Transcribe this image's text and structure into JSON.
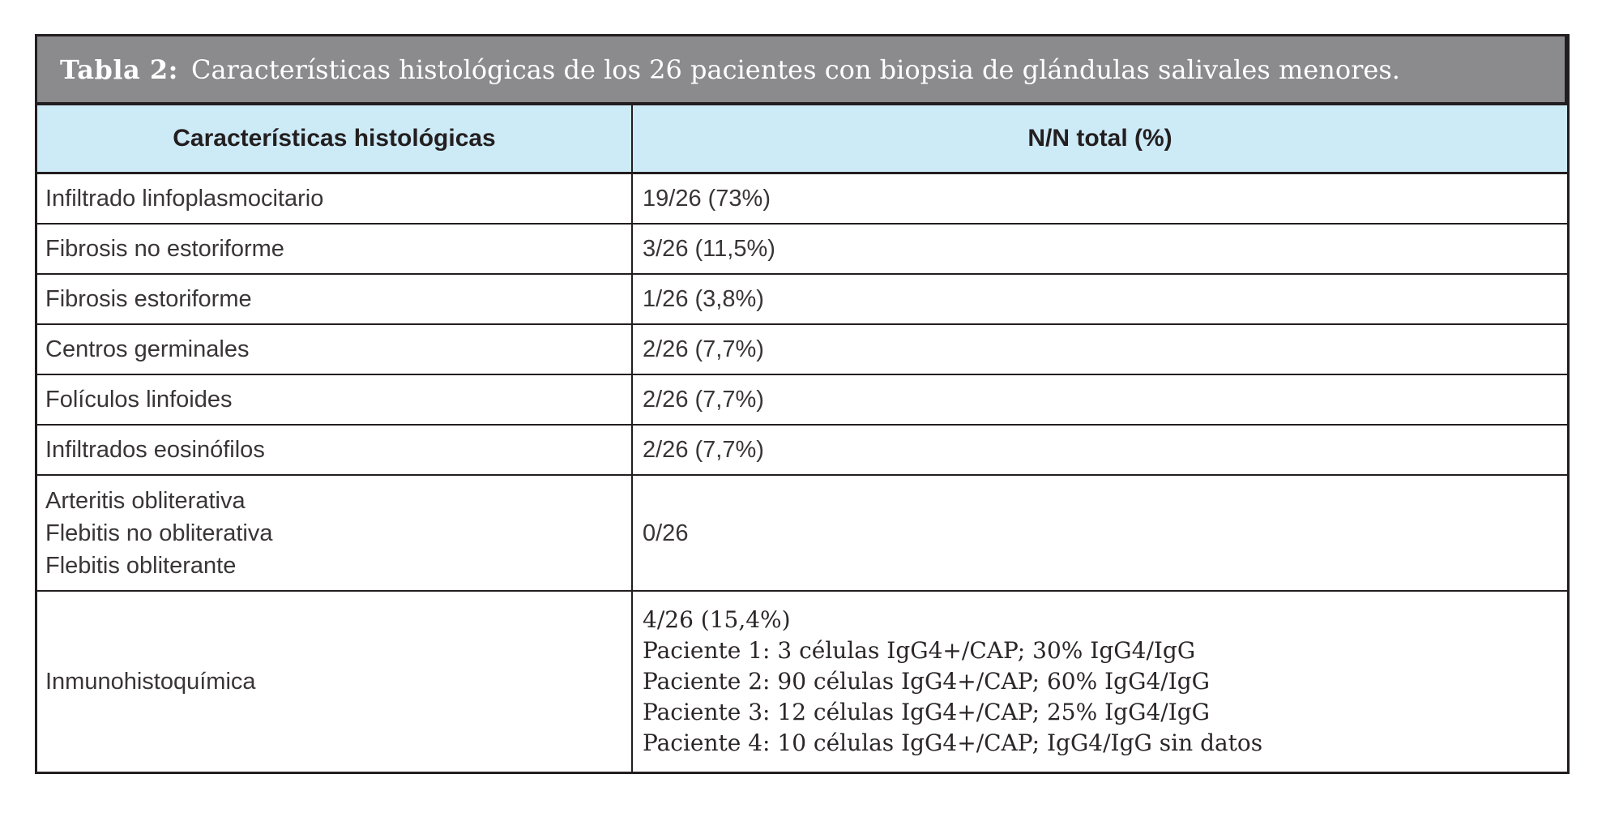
{
  "table": {
    "title": {
      "prefix": "Tabla 2:",
      "text": "Características histológicas de los 26 pacientes con biopsia de glándulas salivales menores."
    },
    "header": {
      "feature_label": "Características histológicas",
      "value_label": "N/N total (%)"
    },
    "rows": [
      {
        "feature": [
          "Infiltrado linfoplasmocitario"
        ],
        "value": [
          "19/26 (73%)"
        ]
      },
      {
        "feature": [
          "Fibrosis no estoriforme"
        ],
        "value": [
          "3/26 (11,5%)"
        ]
      },
      {
        "feature": [
          "Fibrosis estoriforme"
        ],
        "value": [
          "1/26 (3,8%)"
        ]
      },
      {
        "feature": [
          "Centros germinales"
        ],
        "value": [
          "2/26 (7,7%)"
        ]
      },
      {
        "feature": [
          "Folículos linfoides"
        ],
        "value": [
          "2/26 (7,7%)"
        ]
      },
      {
        "feature": [
          "Infiltrados eosinófilos"
        ],
        "value": [
          "2/26 (7,7%)"
        ]
      },
      {
        "feature": [
          "Arteritis obliterativa",
          "Flebitis no obliterativa",
          "Flebitis obliterante"
        ],
        "value": [
          "0/26"
        ]
      },
      {
        "feature": [
          "Inmunohistoquímica"
        ],
        "value": [
          "4/26 (15,4%)",
          "Paciente 1: 3 células IgG4+/CAP; 30% IgG4/IgG",
          "Paciente 2: 90 células IgG4+/CAP; 60% IgG4/IgG",
          "Paciente 3: 12 células IgG4+/CAP; 25% IgG4/IgG",
          "Paciente 4: 10 células IgG4+/CAP; IgG4/IgG sin datos"
        ]
      }
    ],
    "colors": {
      "title_bg": "#8b8b8d",
      "title_text": "#ffffff",
      "header_bg": "#cdeaf7",
      "border": "#221e1f",
      "cell_text": "#393536"
    }
  }
}
